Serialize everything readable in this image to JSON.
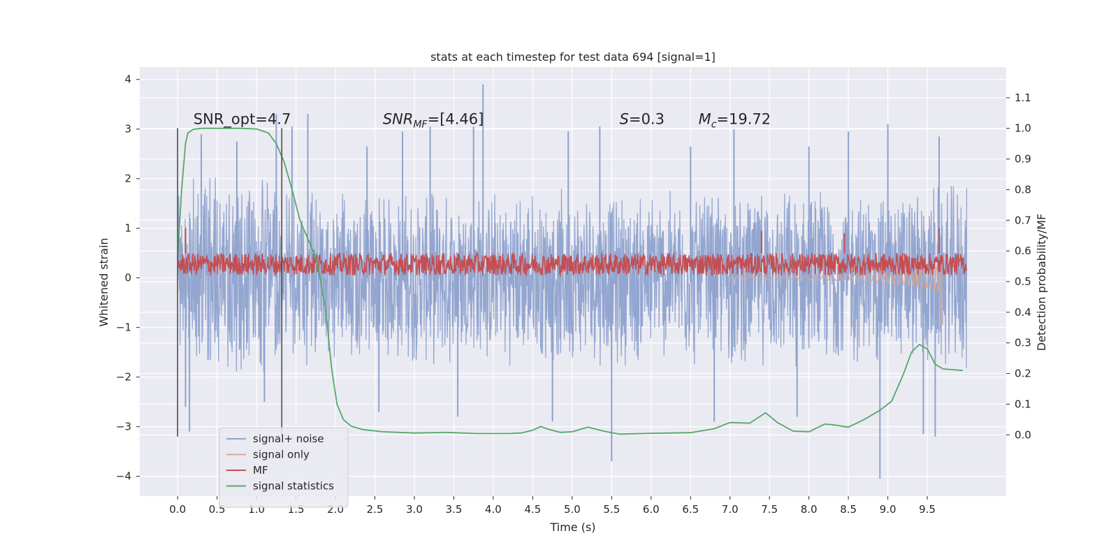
{
  "chart_data": {
    "type": "line",
    "title": "stats at each timestep for test data 694 [signal=1]",
    "xlabel": "Time (s)",
    "ylabel": "Whitened strain",
    "y2label": "Detection probability/MF",
    "xlim": [
      -0.48,
      10.5
    ],
    "ylim": [
      -4.4,
      4.25
    ],
    "y2lim": [
      -0.2,
      1.2
    ],
    "grid": true,
    "xticks": [
      0.0,
      0.5,
      1.0,
      1.5,
      2.0,
      2.5,
      3.0,
      3.5,
      4.0,
      4.5,
      5.0,
      5.5,
      6.0,
      6.5,
      7.0,
      7.5,
      8.0,
      8.5,
      9.0,
      9.5
    ],
    "xtick_labels": [
      "0.0",
      "0.5",
      "1.0",
      "1.5",
      "2.0",
      "2.5",
      "3.0",
      "3.5",
      "4.0",
      "4.5",
      "5.0",
      "5.5",
      "6.0",
      "6.5",
      "7.0",
      "7.5",
      "8.0",
      "8.5",
      "9.0",
      "9.5"
    ],
    "yticks": [
      4,
      3,
      2,
      1,
      0,
      -1,
      -2,
      -3,
      -4
    ],
    "ytick_labels": [
      "4",
      "3",
      "2",
      "1",
      "0",
      "−1",
      "−2",
      "−3",
      "−4"
    ],
    "y2ticks": [
      1.1,
      1.0,
      0.9,
      0.8,
      0.7,
      0.6,
      0.5,
      0.4,
      0.3,
      0.2,
      0.1,
      0.0
    ],
    "y2tick_labels": [
      "1.1",
      "1.0",
      "0.9",
      "0.8",
      "0.7",
      "0.6",
      "0.5",
      "0.4",
      "0.3",
      "0.2",
      "0.1",
      "0.0"
    ],
    "vertical_markers": [
      {
        "x": 0.0,
        "y_range": [
          -3.2,
          3.02
        ]
      },
      {
        "x": 1.32,
        "y_range": [
          -3.2,
          3.02
        ]
      }
    ],
    "annotations": [
      {
        "text": "SNR_opt=4.7",
        "x": 0.2,
        "y": 3.1
      },
      {
        "text": "SNR_MF=[4.46]",
        "x": 2.6,
        "y": 3.1,
        "base": "SNR",
        "sub": "MF",
        "tail": "=[4.46]"
      },
      {
        "text": "S=0.3",
        "x": 5.6,
        "y": 3.1,
        "base": "S",
        "tail": "=0.3"
      },
      {
        "text": "M_c=19.72",
        "x": 6.6,
        "y": 3.1,
        "base": "M",
        "sub": "c",
        "tail": "=19.72"
      }
    ],
    "series": [
      {
        "name": "signal+ noise",
        "color": "#8ea2cd",
        "axis": "left",
        "kind": "noise",
        "x_range": [
          0.0,
          10.0
        ],
        "envelope": [
          [
            0.0,
            1.7
          ],
          [
            0.1,
            2.4
          ],
          [
            2.0,
            1.8
          ],
          [
            9.0,
            1.9
          ],
          [
            10.0,
            2.0
          ]
        ],
        "spikes": [
          [
            0.3,
            2.9
          ],
          [
            0.75,
            2.75
          ],
          [
            1.25,
            3.3
          ],
          [
            1.45,
            3.05
          ],
          [
            1.65,
            3.3
          ],
          [
            2.4,
            2.65
          ],
          [
            2.85,
            2.95
          ],
          [
            3.2,
            3.05
          ],
          [
            3.75,
            3.05
          ],
          [
            3.87,
            3.9
          ],
          [
            4.95,
            2.95
          ],
          [
            5.35,
            3.05
          ],
          [
            6.5,
            2.65
          ],
          [
            7.05,
            3.0
          ],
          [
            8.0,
            2.65
          ],
          [
            8.5,
            2.95
          ],
          [
            9.0,
            3.1
          ],
          [
            9.65,
            2.85
          ],
          [
            0.1,
            -2.6
          ],
          [
            1.1,
            -2.5
          ],
          [
            2.55,
            -2.7
          ],
          [
            3.55,
            -2.8
          ],
          [
            4.75,
            -2.9
          ],
          [
            5.5,
            -3.7
          ],
          [
            6.8,
            -2.9
          ],
          [
            7.85,
            -2.8
          ],
          [
            8.9,
            -4.05
          ],
          [
            9.45,
            -3.15
          ],
          [
            9.6,
            -3.2
          ],
          [
            0.15,
            -3.1
          ]
        ]
      },
      {
        "name": "signal only",
        "color": "#dea88f",
        "axis": "left",
        "kind": "chirp",
        "x_range": [
          7.0,
          9.67
        ],
        "min_at_end": -0.95
      },
      {
        "name": "MF",
        "color": "#c44e52",
        "axis": "left",
        "kind": "band",
        "x_range": [
          0.0,
          10.0
        ],
        "base": 0.05,
        "top": 0.5,
        "spikes": [
          [
            0.1,
            1.0
          ],
          [
            9.65,
            1.0
          ],
          [
            7.4,
            0.95
          ],
          [
            8.45,
            0.9
          ]
        ]
      },
      {
        "name": "signal statistics",
        "color": "#55a868",
        "axis": "right",
        "kind": "curve",
        "x": [
          0.0,
          0.05,
          0.1,
          0.13,
          0.2,
          0.3,
          0.5,
          0.8,
          1.0,
          1.15,
          1.25,
          1.35,
          1.45,
          1.55,
          1.65,
          1.75,
          1.8,
          1.88,
          1.95,
          2.02,
          2.1,
          2.2,
          2.35,
          2.6,
          3.0,
          3.4,
          3.8,
          4.2,
          4.35,
          4.5,
          4.6,
          4.7,
          4.85,
          5.0,
          5.2,
          5.4,
          5.6,
          6.0,
          6.5,
          6.8,
          7.0,
          7.25,
          7.45,
          7.6,
          7.8,
          8.0,
          8.2,
          8.3,
          8.5,
          8.7,
          8.9,
          9.05,
          9.2,
          9.3,
          9.4,
          9.5,
          9.6,
          9.7,
          9.8,
          9.95
        ],
        "y": [
          0.58,
          0.8,
          0.95,
          0.985,
          0.997,
          1.0,
          1.0,
          1.0,
          0.998,
          0.985,
          0.95,
          0.89,
          0.8,
          0.7,
          0.64,
          0.58,
          0.52,
          0.4,
          0.22,
          0.1,
          0.05,
          0.028,
          0.017,
          0.01,
          0.006,
          0.008,
          0.004,
          0.004,
          0.006,
          0.015,
          0.027,
          0.018,
          0.008,
          0.01,
          0.025,
          0.012,
          0.002,
          0.005,
          0.007,
          0.02,
          0.04,
          0.038,
          0.072,
          0.04,
          0.012,
          0.01,
          0.035,
          0.033,
          0.025,
          0.05,
          0.08,
          0.11,
          0.2,
          0.27,
          0.295,
          0.28,
          0.23,
          0.215,
          0.213,
          0.21
        ]
      }
    ],
    "legend": {
      "position": "lower-left",
      "entries": [
        "signal+ noise",
        "signal only",
        "MF",
        "signal statistics"
      ]
    }
  }
}
